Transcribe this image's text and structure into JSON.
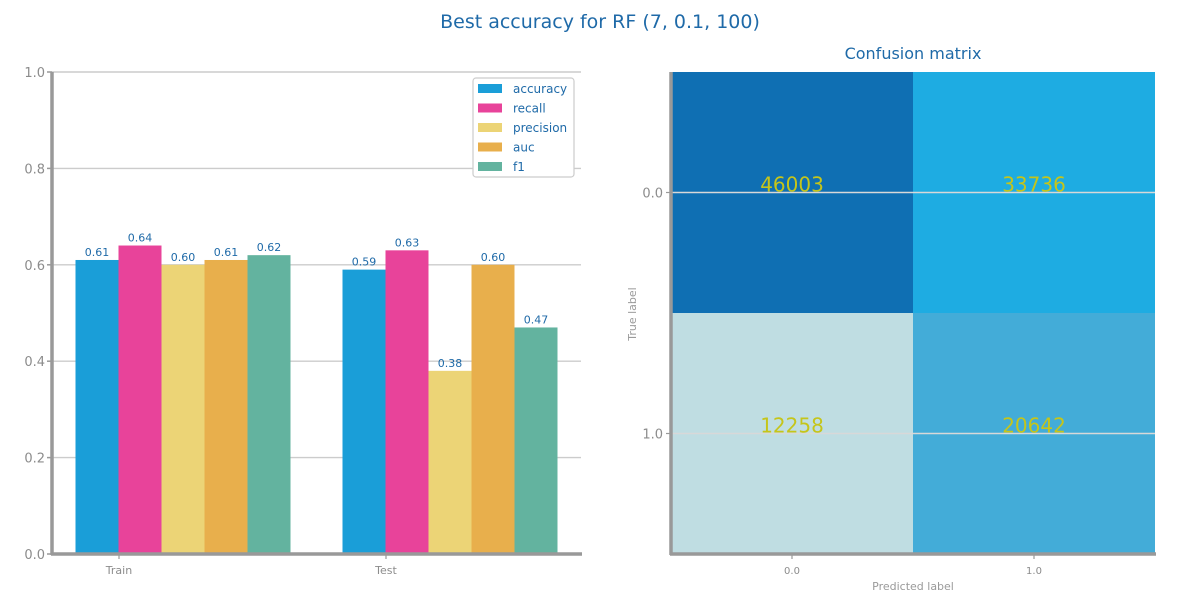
{
  "figure": {
    "title": "Best accuracy for RF (7, 0.1, 100)"
  },
  "colors": {
    "title": "#1f6aa8",
    "axis": "#999999",
    "grid": "#cccccc",
    "tick_text": "#8c8c8c",
    "bar_label": "#1f6aa8",
    "cell_text": "#c5c51a",
    "legend_border": "#cccccc",
    "series": {
      "accuracy": "#1a9ed8",
      "recall": "#e8439a",
      "precision": "#ecd476",
      "auc": "#e8af4c",
      "f1": "#63b39f"
    }
  },
  "chart_data": [
    {
      "type": "bar",
      "title": "",
      "xlabel": "",
      "ylabel": "",
      "categories": [
        "Train",
        "Test"
      ],
      "series": [
        {
          "name": "accuracy",
          "values": [
            0.61,
            0.59
          ]
        },
        {
          "name": "recall",
          "values": [
            0.64,
            0.63
          ]
        },
        {
          "name": "precision",
          "values": [
            0.6,
            0.38
          ]
        },
        {
          "name": "auc",
          "values": [
            0.61,
            0.6
          ]
        },
        {
          "name": "f1",
          "values": [
            0.62,
            0.47
          ]
        }
      ],
      "value_labels": [
        [
          "0.61",
          "0.59"
        ],
        [
          "0.64",
          "0.63"
        ],
        [
          "0.60",
          "0.38"
        ],
        [
          "0.61",
          "0.60"
        ],
        [
          "0.62",
          "0.47"
        ]
      ],
      "ylim": [
        0.0,
        1.0
      ],
      "yticks": [
        "0.0",
        "0.2",
        "0.4",
        "0.6",
        "0.8",
        "1.0"
      ],
      "grid": true,
      "legend": "top-right"
    },
    {
      "type": "heatmap",
      "title": "Confusion matrix",
      "xlabel": "Predicted label",
      "ylabel": "True label",
      "x_categories": [
        "0.0",
        "1.0"
      ],
      "y_categories": [
        "0.0",
        "1.0"
      ],
      "values": [
        [
          46003,
          33736
        ],
        [
          12258,
          20642
        ]
      ],
      "cell_colors": [
        [
          "#0f6fb3",
          "#1eace2"
        ],
        [
          "#bfdde2",
          "#43acd8"
        ]
      ],
      "grid": true
    }
  ]
}
